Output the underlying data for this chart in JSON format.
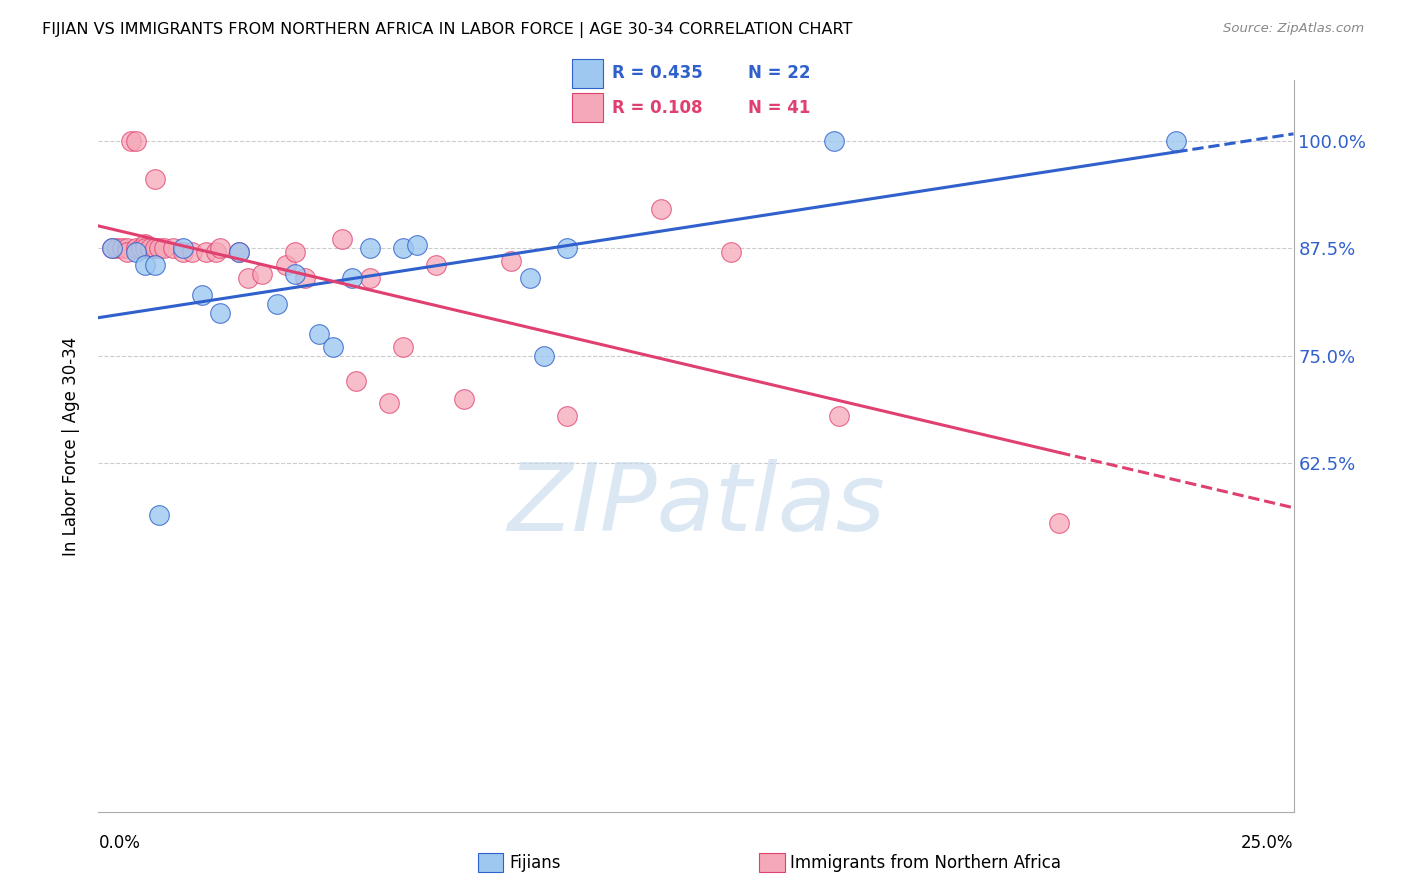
{
  "title": "FIJIAN VS IMMIGRANTS FROM NORTHERN AFRICA IN LABOR FORCE | AGE 30-34 CORRELATION CHART",
  "source": "Source: ZipAtlas.com",
  "ylabel": "In Labor Force | Age 30-34",
  "legend_label_blue": "Fijians",
  "legend_label_pink": "Immigrants from Northern Africa",
  "legend_R_blue": "R = 0.435",
  "legend_N_blue": "N = 22",
  "legend_R_pink": "R = 0.108",
  "legend_N_pink": "N = 41",
  "color_blue": "#9EC8F0",
  "color_pink": "#F5A8B8",
  "color_blue_line": "#3060CC",
  "color_pink_line": "#E04070",
  "color_blue_text": "#3060CC",
  "color_pink_text": "#E04070",
  "xlim": [
    0.0,
    0.255
  ],
  "ylim": [
    0.22,
    1.07
  ],
  "ytick_vals": [
    0.625,
    0.75,
    0.875,
    1.0
  ],
  "ytick_labels": [
    "62.5%",
    "75.0%",
    "87.5%",
    "100.0%"
  ],
  "grid_color": "#CCCCCC",
  "background_color": "#FFFFFF",
  "fijian_x": [
    0.003,
    0.008,
    0.01,
    0.012,
    0.013,
    0.018,
    0.022,
    0.026,
    0.03,
    0.038,
    0.042,
    0.047,
    0.05,
    0.054,
    0.058,
    0.065,
    0.068,
    0.092,
    0.095,
    0.1,
    0.157,
    0.23
  ],
  "fijian_y": [
    0.875,
    0.87,
    0.855,
    0.855,
    0.565,
    0.875,
    0.82,
    0.8,
    0.87,
    0.81,
    0.845,
    0.775,
    0.76,
    0.84,
    0.875,
    0.875,
    0.878,
    0.84,
    0.75,
    0.875,
    1.0,
    1.0
  ],
  "nafric_x": [
    0.003,
    0.004,
    0.005,
    0.006,
    0.006,
    0.007,
    0.008,
    0.008,
    0.009,
    0.01,
    0.01,
    0.011,
    0.012,
    0.012,
    0.013,
    0.014,
    0.016,
    0.018,
    0.02,
    0.023,
    0.025,
    0.026,
    0.03,
    0.032,
    0.035,
    0.04,
    0.042,
    0.044,
    0.052,
    0.055,
    0.058,
    0.062,
    0.065,
    0.072,
    0.078,
    0.088,
    0.1,
    0.12,
    0.135,
    0.158,
    0.205
  ],
  "nafric_y": [
    0.875,
    0.875,
    0.875,
    0.875,
    0.87,
    1.0,
    0.875,
    1.0,
    0.875,
    0.88,
    0.875,
    0.875,
    0.875,
    0.955,
    0.875,
    0.875,
    0.875,
    0.87,
    0.87,
    0.87,
    0.87,
    0.875,
    0.87,
    0.84,
    0.845,
    0.855,
    0.87,
    0.84,
    0.885,
    0.72,
    0.84,
    0.695,
    0.76,
    0.855,
    0.7,
    0.86,
    0.68,
    0.92,
    0.87,
    0.68,
    0.555
  ],
  "watermark_text": "ZIPatlas",
  "watermark_color": "#C5D8EE",
  "watermark_alpha": 0.6
}
